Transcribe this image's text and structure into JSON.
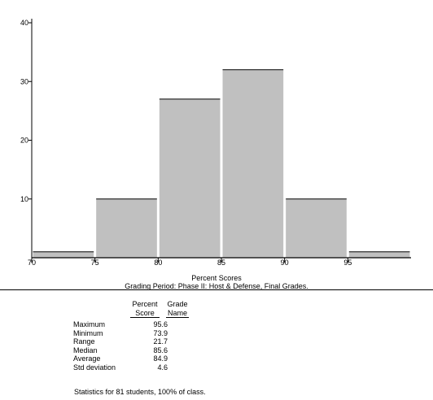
{
  "chart_data": {
    "type": "bar",
    "bins": [
      {
        "x0": 70,
        "x1": 75,
        "count": 1
      },
      {
        "x0": 75,
        "x1": 80,
        "count": 10
      },
      {
        "x0": 80,
        "x1": 85,
        "count": 27
      },
      {
        "x0": 85,
        "x1": 90,
        "count": 32
      },
      {
        "x0": 90,
        "x1": 95,
        "count": 10
      },
      {
        "x0": 95,
        "x1": 100,
        "count": 1
      }
    ],
    "xticks": [
      70,
      75,
      80,
      85,
      90,
      95
    ],
    "yticks": [
      10,
      20,
      30,
      40
    ],
    "xlim": [
      70,
      100
    ],
    "ylim": [
      0,
      40
    ],
    "bar_color": "#c0c0c0",
    "xlabel": "Percent Scores",
    "subtitle": "Grading Period: Phase II: Host & Defense, Final Grades."
  },
  "stats": {
    "header_score_1": "Percent",
    "header_score_2": "Score",
    "header_grade_1": "Grade",
    "header_grade_2": "Name",
    "rows": [
      {
        "label": "Maximum",
        "value": "95.6"
      },
      {
        "label": "Minimum",
        "value": "73.9"
      },
      {
        "label": "Range",
        "value": "21.7"
      },
      {
        "label": "Median",
        "value": "85.6"
      },
      {
        "label": "Average",
        "value": "84.9"
      },
      {
        "label": "Std deviation",
        "value": "4.6"
      }
    ]
  },
  "footer": "Statistics for 81 students, 100% of class."
}
